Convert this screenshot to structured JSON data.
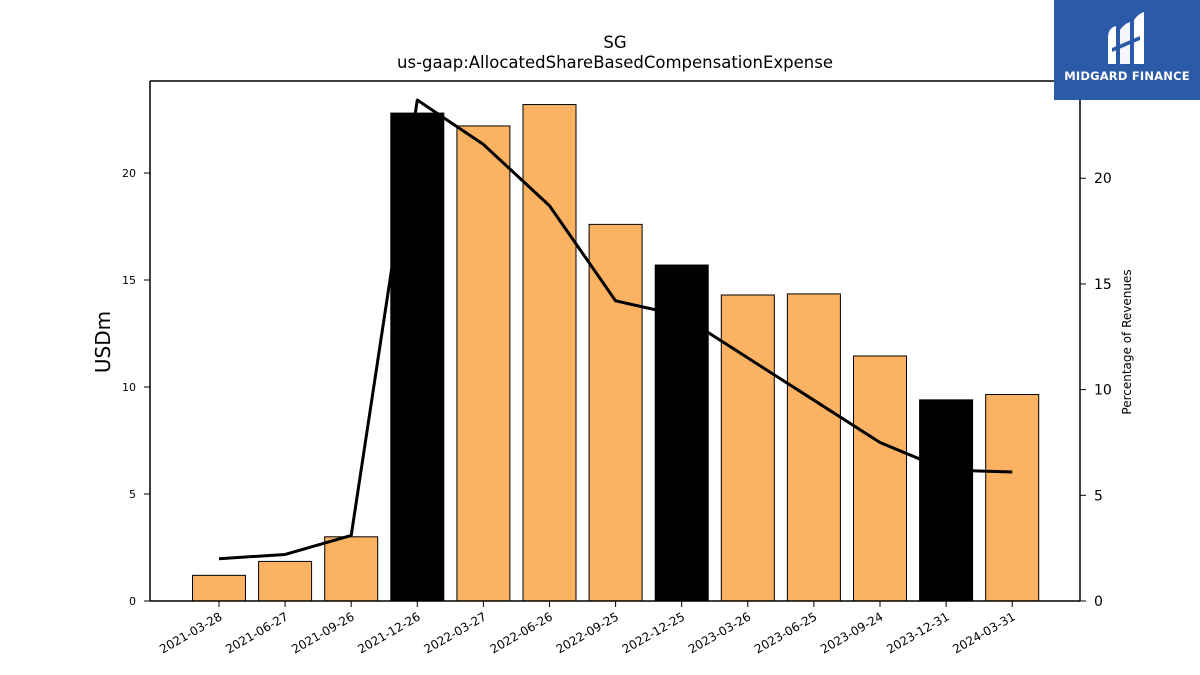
{
  "chart_data": {
    "type": "bar",
    "title": "SG",
    "subtitle": "us-gaap:AllocatedShareBasedCompensationExpense",
    "ylabel": "USDm",
    "y2label": "Percentage of Revenues",
    "categories": [
      "2021-03-28",
      "2021-06-27",
      "2021-09-26",
      "2021-12-26",
      "2022-03-27",
      "2022-06-26",
      "2022-09-25",
      "2022-12-25",
      "2023-03-26",
      "2023-06-25",
      "2023-09-24",
      "2023-12-31",
      "2024-03-31"
    ],
    "series": [
      {
        "type": "bar",
        "values": [
          1.2,
          1.85,
          3.0,
          22.8,
          22.2,
          23.2,
          17.6,
          15.7,
          14.3,
          14.35,
          11.45,
          9.4,
          9.65
        ],
        "colors": [
          "#fbb263",
          "#fbb263",
          "#fbb263",
          "#000000",
          "#fbb263",
          "#fbb263",
          "#fbb263",
          "#000000",
          "#fbb263",
          "#fbb263",
          "#fbb263",
          "#000000",
          "#fbb263"
        ]
      },
      {
        "type": "line",
        "axis": "right",
        "values": [
          2.0,
          2.2,
          3.1,
          23.7,
          21.6,
          18.7,
          14.2,
          13.5,
          11.5,
          9.5,
          7.5,
          6.2,
          6.1
        ],
        "color": "#000000"
      }
    ],
    "ylim": [
      0,
      24.3
    ],
    "y2lim": [
      0,
      24.6
    ],
    "yticks": [
      0,
      5,
      10,
      15,
      20
    ],
    "y2ticks": [
      0,
      5,
      10,
      15,
      20
    ],
    "grid": false,
    "legend": "none"
  },
  "logo": {
    "text": "MIDGARD FINANCE",
    "icon": "midgard-finance-logo-icon",
    "color": "#2b5aa8"
  }
}
